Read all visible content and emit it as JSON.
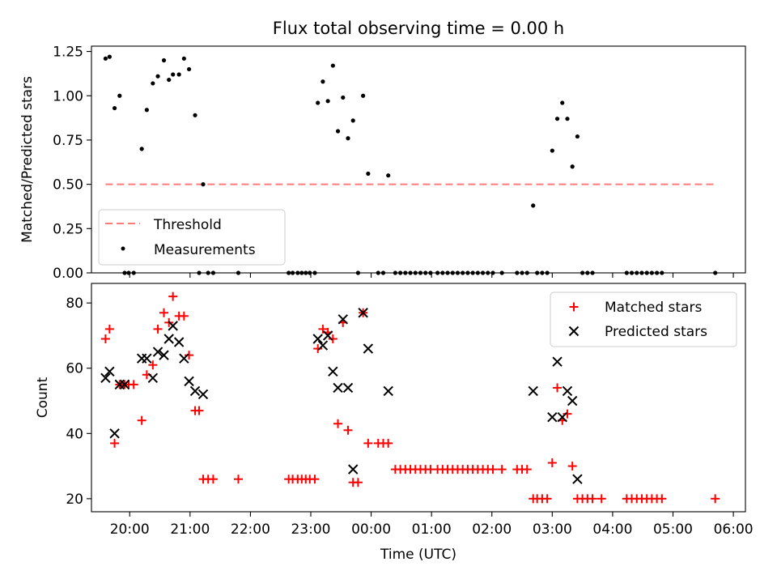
{
  "chart_data": [
    {
      "type": "scatter",
      "title": "Flux total observing time = 0.00 h",
      "xlabel": "",
      "ylabel": "Matched/Predicted stars",
      "xlim": [
        "19:22",
        "06:12"
      ],
      "ylim": [
        0,
        1.28
      ],
      "yticks": [
        "0.00",
        "0.25",
        "0.50",
        "0.75",
        "1.00",
        "1.25"
      ],
      "grid": false,
      "legend_position": "lower-left",
      "threshold": {
        "name": "Threshold",
        "color": "#ff7a7a",
        "y": 0.5,
        "x": [
          "19:36",
          "05:42"
        ]
      },
      "series": [
        {
          "name": "Measurements",
          "color": "#000000",
          "points": [
            [
              "19:36",
              1.21
            ],
            [
              "19:40",
              1.22
            ],
            [
              "19:45",
              0.93
            ],
            [
              "19:50",
              1.0
            ],
            [
              "19:55",
              0.0
            ],
            [
              "19:59",
              0.0
            ],
            [
              "20:04",
              0.0
            ],
            [
              "20:12",
              0.7
            ],
            [
              "20:17",
              0.92
            ],
            [
              "20:23",
              1.07
            ],
            [
              "20:28",
              1.11
            ],
            [
              "20:34",
              1.2
            ],
            [
              "20:39",
              1.09
            ],
            [
              "20:43",
              1.12
            ],
            [
              "20:49",
              1.12
            ],
            [
              "20:54",
              1.21
            ],
            [
              "20:59",
              1.15
            ],
            [
              "21:05",
              0.89
            ],
            [
              "21:09",
              0.0
            ],
            [
              "21:13",
              0.5
            ],
            [
              "21:18",
              0.0
            ],
            [
              "21:23",
              0.0
            ],
            [
              "21:48",
              0.0
            ],
            [
              "22:38",
              0.0
            ],
            [
              "22:42",
              0.0
            ],
            [
              "22:47",
              0.0
            ],
            [
              "22:51",
              0.0
            ],
            [
              "22:55",
              0.0
            ],
            [
              "22:59",
              0.0
            ],
            [
              "23:04",
              0.0
            ],
            [
              "23:07",
              0.96
            ],
            [
              "23:12",
              1.08
            ],
            [
              "23:17",
              0.97
            ],
            [
              "23:22",
              1.17
            ],
            [
              "23:27",
              0.8
            ],
            [
              "23:32",
              0.99
            ],
            [
              "23:37",
              0.76
            ],
            [
              "23:42",
              0.86
            ],
            [
              "23:47",
              0.0
            ],
            [
              "23:52",
              1.0
            ],
            [
              "23:57",
              0.56
            ],
            [
              "00:07",
              0.0
            ],
            [
              "00:12",
              0.0
            ],
            [
              "00:17",
              0.55
            ],
            [
              "00:24",
              0.0
            ],
            [
              "00:29",
              0.0
            ],
            [
              "00:34",
              0.0
            ],
            [
              "00:39",
              0.0
            ],
            [
              "00:44",
              0.0
            ],
            [
              "00:49",
              0.0
            ],
            [
              "00:54",
              0.0
            ],
            [
              "00:59",
              0.0
            ],
            [
              "01:06",
              0.0
            ],
            [
              "01:11",
              0.0
            ],
            [
              "01:16",
              0.0
            ],
            [
              "01:21",
              0.0
            ],
            [
              "01:26",
              0.0
            ],
            [
              "01:31",
              0.0
            ],
            [
              "01:36",
              0.0
            ],
            [
              "01:41",
              0.0
            ],
            [
              "01:46",
              0.0
            ],
            [
              "01:51",
              0.0
            ],
            [
              "01:56",
              0.0
            ],
            [
              "02:01",
              0.0
            ],
            [
              "02:10",
              0.0
            ],
            [
              "02:25",
              0.0
            ],
            [
              "02:30",
              0.0
            ],
            [
              "02:35",
              0.0
            ],
            [
              "02:41",
              0.38
            ],
            [
              "02:45",
              0.0
            ],
            [
              "02:50",
              0.0
            ],
            [
              "02:55",
              0.0
            ],
            [
              "03:00",
              0.69
            ],
            [
              "03:05",
              0.87
            ],
            [
              "03:10",
              0.96
            ],
            [
              "03:15",
              0.87
            ],
            [
              "03:20",
              0.6
            ],
            [
              "03:25",
              0.77
            ],
            [
              "03:30",
              0.0
            ],
            [
              "03:35",
              0.0
            ],
            [
              "03:40",
              0.0
            ],
            [
              "04:14",
              0.0
            ],
            [
              "04:19",
              0.0
            ],
            [
              "04:24",
              0.0
            ],
            [
              "04:29",
              0.0
            ],
            [
              "04:34",
              0.0
            ],
            [
              "04:39",
              0.0
            ],
            [
              "04:44",
              0.0
            ],
            [
              "04:49",
              0.0
            ],
            [
              "05:42",
              0.0
            ]
          ]
        }
      ]
    },
    {
      "type": "scatter",
      "title": "",
      "xlabel": "Time (UTC)",
      "ylabel": "Count",
      "xlim": [
        "19:22",
        "06:12"
      ],
      "ylim": [
        16,
        86
      ],
      "xticks": [
        "20:00",
        "21:00",
        "22:00",
        "23:00",
        "00:00",
        "01:00",
        "02:00",
        "03:00",
        "04:00",
        "05:00",
        "06:00"
      ],
      "yticks": [
        "20",
        "40",
        "60",
        "80"
      ],
      "grid": false,
      "legend_position": "upper-right",
      "series": [
        {
          "name": "Matched stars",
          "color": "#ff0000",
          "marker": "plus",
          "points": [
            [
              "19:36",
              69
            ],
            [
              "19:40",
              72
            ],
            [
              "19:45",
              37
            ],
            [
              "19:50",
              55
            ],
            [
              "19:55",
              55
            ],
            [
              "19:59",
              55
            ],
            [
              "20:04",
              55
            ],
            [
              "20:12",
              44
            ],
            [
              "20:17",
              58
            ],
            [
              "20:23",
              61
            ],
            [
              "20:28",
              72
            ],
            [
              "20:34",
              77
            ],
            [
              "20:39",
              74
            ],
            [
              "20:43",
              82
            ],
            [
              "20:49",
              76
            ],
            [
              "20:54",
              76
            ],
            [
              "20:59",
              64
            ],
            [
              "21:05",
              47
            ],
            [
              "21:09",
              47
            ],
            [
              "21:13",
              26
            ],
            [
              "21:18",
              26
            ],
            [
              "21:23",
              26
            ],
            [
              "21:48",
              26
            ],
            [
              "22:38",
              26
            ],
            [
              "22:42",
              26
            ],
            [
              "22:47",
              26
            ],
            [
              "22:51",
              26
            ],
            [
              "22:55",
              26
            ],
            [
              "22:59",
              26
            ],
            [
              "23:04",
              26
            ],
            [
              "23:07",
              66
            ],
            [
              "23:12",
              72
            ],
            [
              "23:17",
              71
            ],
            [
              "23:22",
              69
            ],
            [
              "23:27",
              43
            ],
            [
              "23:32",
              74
            ],
            [
              "23:37",
              41
            ],
            [
              "23:42",
              25
            ],
            [
              "23:47",
              25
            ],
            [
              "23:52",
              77
            ],
            [
              "23:57",
              37
            ],
            [
              "00:07",
              37
            ],
            [
              "00:12",
              37
            ],
            [
              "00:17",
              37
            ],
            [
              "00:24",
              29
            ],
            [
              "00:29",
              29
            ],
            [
              "00:34",
              29
            ],
            [
              "00:39",
              29
            ],
            [
              "00:44",
              29
            ],
            [
              "00:49",
              29
            ],
            [
              "00:54",
              29
            ],
            [
              "00:59",
              29
            ],
            [
              "01:06",
              29
            ],
            [
              "01:11",
              29
            ],
            [
              "01:16",
              29
            ],
            [
              "01:21",
              29
            ],
            [
              "01:26",
              29
            ],
            [
              "01:31",
              29
            ],
            [
              "01:36",
              29
            ],
            [
              "01:41",
              29
            ],
            [
              "01:46",
              29
            ],
            [
              "01:51",
              29
            ],
            [
              "01:56",
              29
            ],
            [
              "02:01",
              29
            ],
            [
              "02:10",
              29
            ],
            [
              "02:25",
              29
            ],
            [
              "02:30",
              29
            ],
            [
              "02:35",
              29
            ],
            [
              "02:41",
              20
            ],
            [
              "02:45",
              20
            ],
            [
              "02:50",
              20
            ],
            [
              "02:55",
              20
            ],
            [
              "03:00",
              31
            ],
            [
              "03:05",
              54
            ],
            [
              "03:10",
              44
            ],
            [
              "03:15",
              46
            ],
            [
              "03:20",
              30
            ],
            [
              "03:25",
              20
            ],
            [
              "03:30",
              20
            ],
            [
              "03:35",
              20
            ],
            [
              "03:40",
              20
            ],
            [
              "03:49",
              20
            ],
            [
              "04:14",
              20
            ],
            [
              "04:19",
              20
            ],
            [
              "04:24",
              20
            ],
            [
              "04:29",
              20
            ],
            [
              "04:34",
              20
            ],
            [
              "04:39",
              20
            ],
            [
              "04:44",
              20
            ],
            [
              "04:49",
              20
            ],
            [
              "05:42",
              20
            ]
          ]
        },
        {
          "name": "Predicted stars",
          "color": "#000000",
          "marker": "x",
          "points": [
            [
              "19:36",
              57
            ],
            [
              "19:40",
              59
            ],
            [
              "19:45",
              40
            ],
            [
              "19:50",
              55
            ],
            [
              "19:55",
              55
            ],
            [
              "20:12",
              63
            ],
            [
              "20:17",
              63
            ],
            [
              "20:23",
              57
            ],
            [
              "20:28",
              65
            ],
            [
              "20:34",
              64
            ],
            [
              "20:39",
              69
            ],
            [
              "20:43",
              73
            ],
            [
              "20:49",
              68
            ],
            [
              "20:54",
              63
            ],
            [
              "20:59",
              56
            ],
            [
              "21:05",
              53
            ],
            [
              "21:13",
              52
            ],
            [
              "23:07",
              69
            ],
            [
              "23:12",
              67
            ],
            [
              "23:17",
              70
            ],
            [
              "23:22",
              59
            ],
            [
              "23:27",
              54
            ],
            [
              "23:32",
              75
            ],
            [
              "23:37",
              54
            ],
            [
              "23:42",
              29
            ],
            [
              "23:52",
              77
            ],
            [
              "23:57",
              66
            ],
            [
              "00:17",
              53
            ],
            [
              "02:41",
              53
            ],
            [
              "03:00",
              45
            ],
            [
              "03:05",
              62
            ],
            [
              "03:10",
              45
            ],
            [
              "03:15",
              53
            ],
            [
              "03:20",
              50
            ],
            [
              "03:25",
              26
            ]
          ]
        }
      ]
    }
  ]
}
